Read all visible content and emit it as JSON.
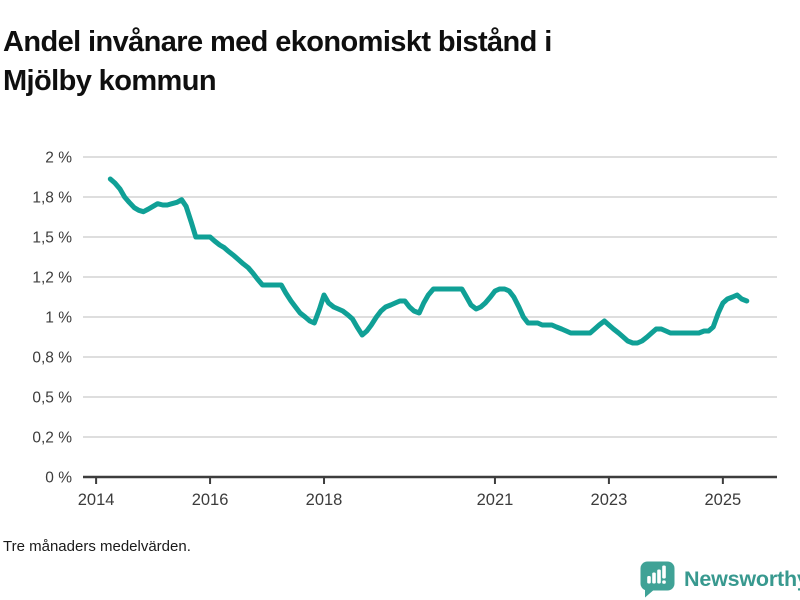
{
  "title": {
    "line1": "Andel invånare med ekonomiskt bistånd i",
    "line2": "Mjölby kommun"
  },
  "footnote": "Tre månaders medelvärden.",
  "brand": {
    "name": "Newsworthy",
    "icon": "bar-chart-speech-bubble-icon",
    "icon_color": "#3fa296",
    "text_color": "#38998f"
  },
  "chart_data": {
    "type": "line",
    "title": "Andel invånare med ekonomiskt bistånd i Mjölby kommun",
    "xlabel": "",
    "ylabel": "",
    "unit": "%",
    "grid": true,
    "legend_position": "none",
    "line_color": "#10a096",
    "grid_color": "#dedede",
    "axis_color": "#3d3d3d",
    "y_scale_note": "ticks evenly spaced on screen",
    "y_ticks": {
      "values": [
        0,
        0.2,
        0.5,
        0.8,
        1,
        1.2,
        1.5,
        1.8,
        2
      ],
      "labels": [
        "0 %",
        "0,2 %",
        "0,5 %",
        "0,8 %",
        "1 %",
        "1,2 %",
        "1,5 %",
        "1,8 %",
        "2 %"
      ]
    },
    "x_ticks": {
      "values": [
        2014,
        2016,
        2018,
        2021,
        2023,
        2025
      ],
      "labels": [
        "2014",
        "2016",
        "2018",
        "2021",
        "2023",
        "2025"
      ]
    },
    "x_range": [
      2013.77,
      2025.95
    ],
    "series": [
      {
        "name": "Andel invånare med ekonomiskt bistånd",
        "points": [
          [
            2014.25,
            1.89
          ],
          [
            2014.33,
            1.87
          ],
          [
            2014.42,
            1.84
          ],
          [
            2014.5,
            1.8
          ],
          [
            2014.58,
            1.76
          ],
          [
            2014.67,
            1.72
          ],
          [
            2014.75,
            1.7
          ],
          [
            2014.83,
            1.69
          ],
          [
            2014.92,
            1.71
          ],
          [
            2015.0,
            1.73
          ],
          [
            2015.08,
            1.75
          ],
          [
            2015.17,
            1.74
          ],
          [
            2015.25,
            1.74
          ],
          [
            2015.33,
            1.75
          ],
          [
            2015.42,
            1.76
          ],
          [
            2015.5,
            1.78
          ],
          [
            2015.58,
            1.73
          ],
          [
            2015.67,
            1.61
          ],
          [
            2015.75,
            1.5
          ],
          [
            2015.83,
            1.5
          ],
          [
            2015.92,
            1.5
          ],
          [
            2016.0,
            1.5
          ],
          [
            2016.08,
            1.47
          ],
          [
            2016.17,
            1.44
          ],
          [
            2016.25,
            1.42
          ],
          [
            2016.33,
            1.39
          ],
          [
            2016.42,
            1.36
          ],
          [
            2016.5,
            1.33
          ],
          [
            2016.58,
            1.3
          ],
          [
            2016.67,
            1.27
          ],
          [
            2016.75,
            1.23
          ],
          [
            2016.83,
            1.19
          ],
          [
            2016.92,
            1.16
          ],
          [
            2017.0,
            1.16
          ],
          [
            2017.08,
            1.16
          ],
          [
            2017.17,
            1.16
          ],
          [
            2017.25,
            1.16
          ],
          [
            2017.33,
            1.12
          ],
          [
            2017.42,
            1.08
          ],
          [
            2017.5,
            1.05
          ],
          [
            2017.58,
            1.02
          ],
          [
            2017.67,
            1.0
          ],
          [
            2017.75,
            0.98
          ],
          [
            2017.83,
            0.97
          ],
          [
            2017.92,
            1.04
          ],
          [
            2018.0,
            1.11
          ],
          [
            2018.08,
            1.07
          ],
          [
            2018.17,
            1.05
          ],
          [
            2018.25,
            1.04
          ],
          [
            2018.33,
            1.03
          ],
          [
            2018.42,
            1.01
          ],
          [
            2018.5,
            0.99
          ],
          [
            2018.58,
            0.95
          ],
          [
            2018.67,
            0.91
          ],
          [
            2018.75,
            0.93
          ],
          [
            2018.83,
            0.96
          ],
          [
            2018.92,
            1.0
          ],
          [
            2019.0,
            1.03
          ],
          [
            2019.08,
            1.05
          ],
          [
            2019.17,
            1.06
          ],
          [
            2019.25,
            1.07
          ],
          [
            2019.33,
            1.08
          ],
          [
            2019.42,
            1.08
          ],
          [
            2019.5,
            1.05
          ],
          [
            2019.58,
            1.03
          ],
          [
            2019.67,
            1.02
          ],
          [
            2019.75,
            1.07
          ],
          [
            2019.83,
            1.11
          ],
          [
            2019.92,
            1.14
          ],
          [
            2020.0,
            1.14
          ],
          [
            2020.08,
            1.14
          ],
          [
            2020.17,
            1.14
          ],
          [
            2020.25,
            1.14
          ],
          [
            2020.33,
            1.14
          ],
          [
            2020.42,
            1.14
          ],
          [
            2020.5,
            1.1
          ],
          [
            2020.58,
            1.06
          ],
          [
            2020.67,
            1.04
          ],
          [
            2020.75,
            1.05
          ],
          [
            2020.83,
            1.07
          ],
          [
            2020.92,
            1.1
          ],
          [
            2021.0,
            1.13
          ],
          [
            2021.08,
            1.14
          ],
          [
            2021.17,
            1.14
          ],
          [
            2021.25,
            1.13
          ],
          [
            2021.33,
            1.1
          ],
          [
            2021.42,
            1.05
          ],
          [
            2021.5,
            1.0
          ],
          [
            2021.58,
            0.97
          ],
          [
            2021.67,
            0.97
          ],
          [
            2021.75,
            0.97
          ],
          [
            2021.83,
            0.96
          ],
          [
            2021.92,
            0.96
          ],
          [
            2022.0,
            0.96
          ],
          [
            2022.08,
            0.95
          ],
          [
            2022.17,
            0.94
          ],
          [
            2022.25,
            0.93
          ],
          [
            2022.33,
            0.92
          ],
          [
            2022.42,
            0.92
          ],
          [
            2022.5,
            0.92
          ],
          [
            2022.58,
            0.92
          ],
          [
            2022.67,
            0.92
          ],
          [
            2022.75,
            0.94
          ],
          [
            2022.83,
            0.96
          ],
          [
            2022.92,
            0.98
          ],
          [
            2023.0,
            0.96
          ],
          [
            2023.08,
            0.94
          ],
          [
            2023.17,
            0.92
          ],
          [
            2023.25,
            0.9
          ],
          [
            2023.33,
            0.88
          ],
          [
            2023.42,
            0.87
          ],
          [
            2023.5,
            0.87
          ],
          [
            2023.58,
            0.88
          ],
          [
            2023.67,
            0.9
          ],
          [
            2023.75,
            0.92
          ],
          [
            2023.83,
            0.94
          ],
          [
            2023.92,
            0.94
          ],
          [
            2024.0,
            0.93
          ],
          [
            2024.08,
            0.92
          ],
          [
            2024.17,
            0.92
          ],
          [
            2024.25,
            0.92
          ],
          [
            2024.33,
            0.92
          ],
          [
            2024.42,
            0.92
          ],
          [
            2024.5,
            0.92
          ],
          [
            2024.58,
            0.92
          ],
          [
            2024.67,
            0.93
          ],
          [
            2024.75,
            0.93
          ],
          [
            2024.83,
            0.95
          ],
          [
            2024.92,
            1.02
          ],
          [
            2025.0,
            1.07
          ],
          [
            2025.08,
            1.09
          ],
          [
            2025.17,
            1.1
          ],
          [
            2025.25,
            1.11
          ],
          [
            2025.33,
            1.09
          ],
          [
            2025.42,
            1.08
          ]
        ]
      }
    ]
  }
}
